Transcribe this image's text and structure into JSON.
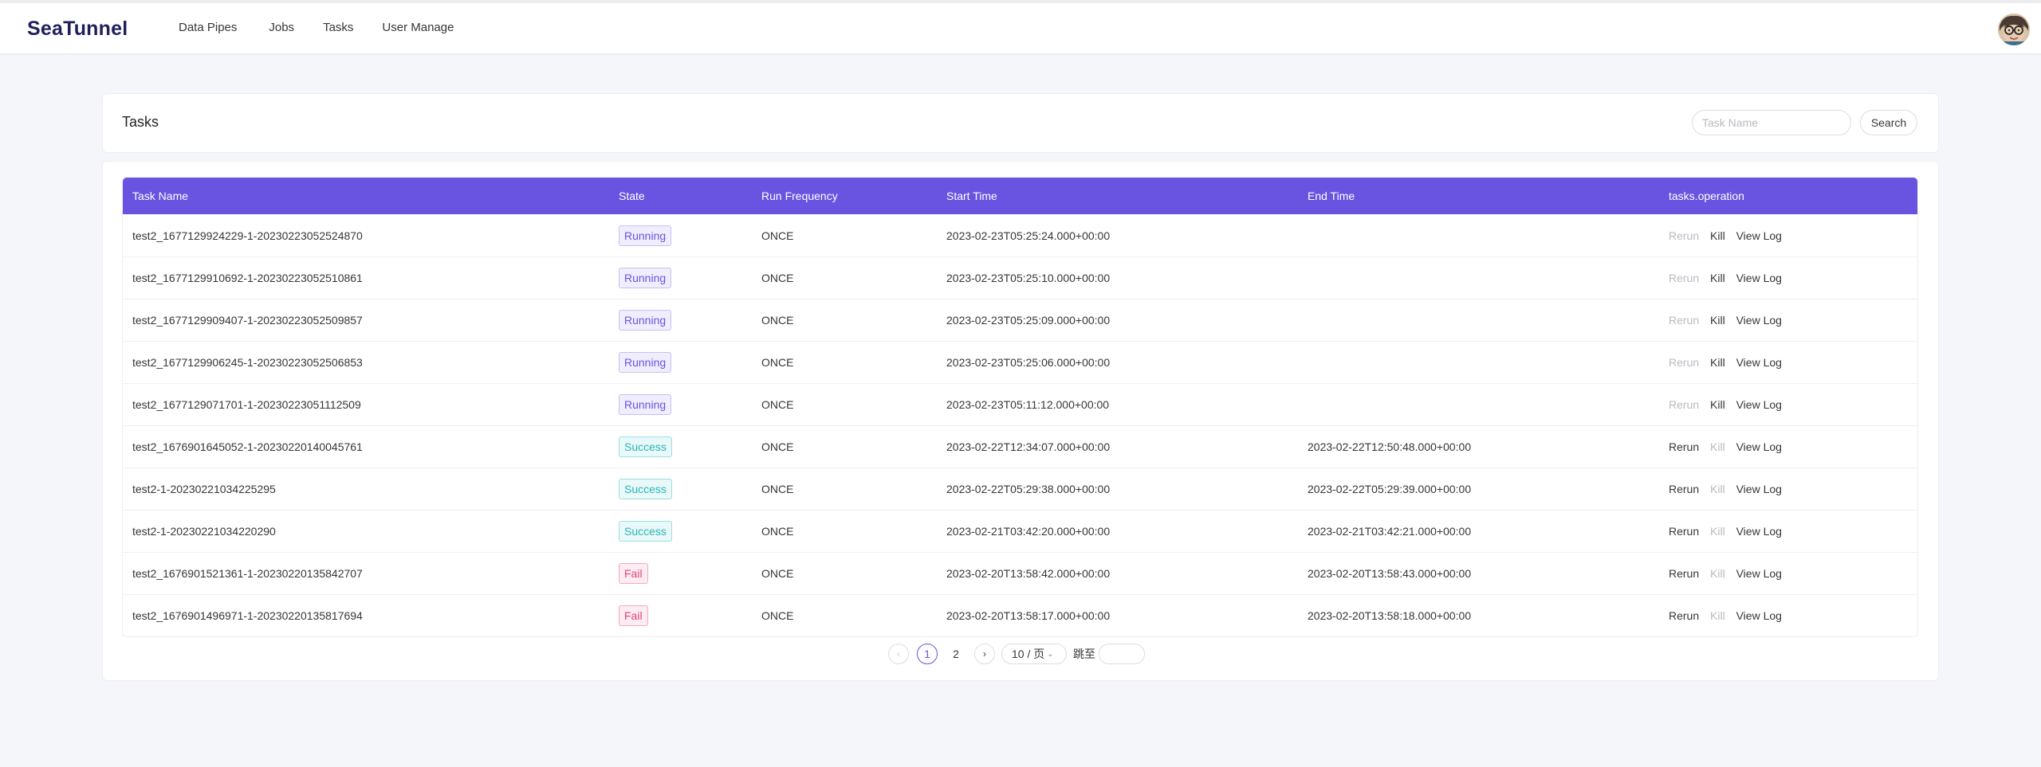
{
  "brand": "SeaTunnel",
  "nav": [
    {
      "label": "Data Pipes"
    },
    {
      "label": "Jobs"
    },
    {
      "label": "Tasks"
    },
    {
      "label": "User Manage"
    }
  ],
  "page_title": "Tasks",
  "search": {
    "placeholder": "Task Name",
    "value": "",
    "button_label": "Search"
  },
  "table": {
    "columns": [
      "Task Name",
      "State",
      "Run Frequency",
      "Start Time",
      "End Time",
      "tasks.operation"
    ],
    "rows": [
      {
        "name": "test2_1677129924229-1-20230223052524870",
        "state": "Running",
        "frequency": "ONCE",
        "start": "2023-02-23T05:25:24.000+00:00",
        "end": ""
      },
      {
        "name": "test2_1677129910692-1-20230223052510861",
        "state": "Running",
        "frequency": "ONCE",
        "start": "2023-02-23T05:25:10.000+00:00",
        "end": ""
      },
      {
        "name": "test2_1677129909407-1-20230223052509857",
        "state": "Running",
        "frequency": "ONCE",
        "start": "2023-02-23T05:25:09.000+00:00",
        "end": ""
      },
      {
        "name": "test2_1677129906245-1-20230223052506853",
        "state": "Running",
        "frequency": "ONCE",
        "start": "2023-02-23T05:25:06.000+00:00",
        "end": ""
      },
      {
        "name": "test2_1677129071701-1-20230223051112509",
        "state": "Running",
        "frequency": "ONCE",
        "start": "2023-02-23T05:11:12.000+00:00",
        "end": ""
      },
      {
        "name": "test2_1676901645052-1-20230220140045761",
        "state": "Success",
        "frequency": "ONCE",
        "start": "2023-02-22T12:34:07.000+00:00",
        "end": "2023-02-22T12:50:48.000+00:00"
      },
      {
        "name": "test2-1-20230221034225295",
        "state": "Success",
        "frequency": "ONCE",
        "start": "2023-02-22T05:29:38.000+00:00",
        "end": "2023-02-22T05:29:39.000+00:00"
      },
      {
        "name": "test2-1-20230221034220290",
        "state": "Success",
        "frequency": "ONCE",
        "start": "2023-02-21T03:42:20.000+00:00",
        "end": "2023-02-21T03:42:21.000+00:00"
      },
      {
        "name": "test2_1676901521361-1-20230220135842707",
        "state": "Fail",
        "frequency": "ONCE",
        "start": "2023-02-20T13:58:42.000+00:00",
        "end": "2023-02-20T13:58:43.000+00:00"
      },
      {
        "name": "test2_1676901496971-1-20230220135817694",
        "state": "Fail",
        "frequency": "ONCE",
        "start": "2023-02-20T13:58:17.000+00:00",
        "end": "2023-02-20T13:58:18.000+00:00"
      }
    ],
    "operations": {
      "rerun": "Rerun",
      "kill": "Kill",
      "view_log": "View Log"
    }
  },
  "pagination": {
    "pages": [
      "1",
      "2"
    ],
    "current": "1",
    "page_size": "10 / 页",
    "jump_label": "跳至",
    "jump_value": ""
  },
  "colors": {
    "accent": "#6854e1",
    "success": "#2ab6b8",
    "fail": "#e0447a"
  }
}
